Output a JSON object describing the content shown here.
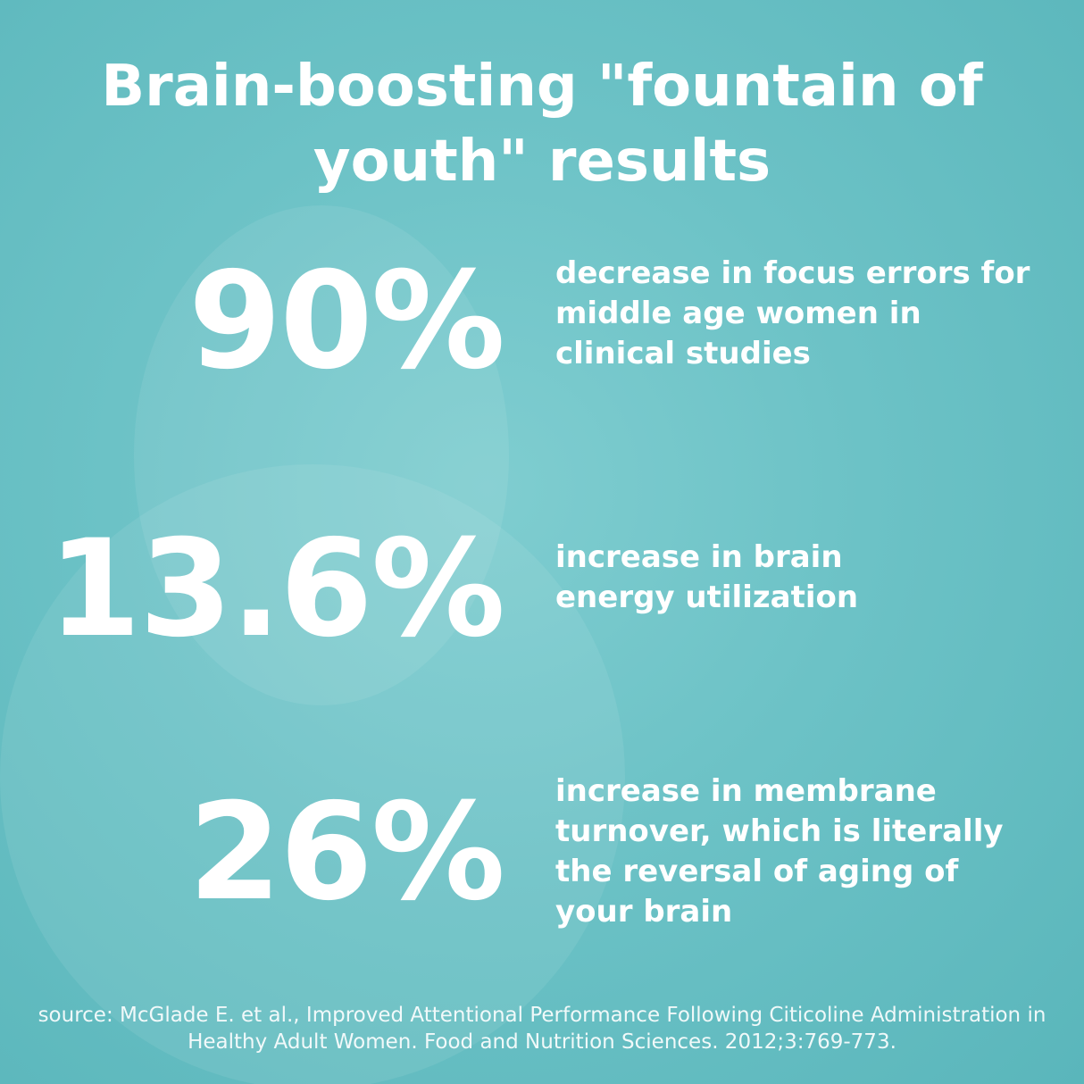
{
  "title": "Brain-boosting \"fountain of youth\" results",
  "stats": [
    {
      "value": "90%",
      "description": "decrease in focus errors for middle age women in clinical studies"
    },
    {
      "value": "13.6%",
      "description": "increase in brain energy utilization"
    },
    {
      "value": "26%",
      "description": "increase in membrane turnover, which is literally the reversal of aging of your brain"
    }
  ],
  "source": "source: McGlade E. et al., Improved Attentional Performance Following Citicoline Administration in Healthy Adult Women. Food and Nutrition Sciences. 2012;3:769-773."
}
